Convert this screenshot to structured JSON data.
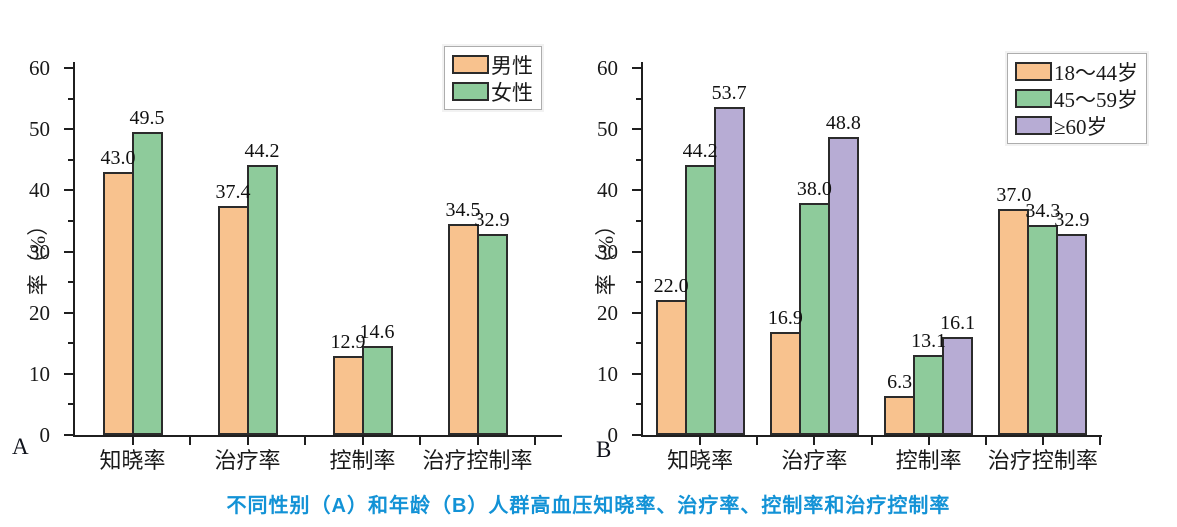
{
  "caption": {
    "text": "不同性别（A）和年龄（B）人群高血压知晓率、治疗率、控制率和治疗控制率",
    "color": "#1292D6"
  },
  "chart_data": [
    {
      "type": "bar",
      "panel_label": "A",
      "title": "",
      "xlabel": "",
      "ylabel": "率（%）",
      "ylim": [
        0,
        60
      ],
      "ytick_step": 10,
      "yminor_step": 5,
      "grid": false,
      "legend_position": "top-right",
      "bar_border_color": "#2b2b2b",
      "categories": [
        "知晓率",
        "治疗率",
        "控制率",
        "治疗控制率"
      ],
      "series": [
        {
          "name": "男性",
          "color": "#F8C28E",
          "values": [
            43.0,
            37.4,
            12.9,
            34.5
          ]
        },
        {
          "name": "女性",
          "color": "#8ECB9B",
          "values": [
            49.5,
            44.2,
            14.6,
            32.9
          ]
        }
      ]
    },
    {
      "type": "bar",
      "panel_label": "B",
      "title": "",
      "xlabel": "",
      "ylabel": "率（%）",
      "ylim": [
        0,
        60
      ],
      "ytick_step": 10,
      "yminor_step": 5,
      "grid": false,
      "legend_position": "top-right",
      "bar_border_color": "#2b2b2b",
      "categories": [
        "知晓率",
        "治疗率",
        "控制率",
        "治疗控制率"
      ],
      "series": [
        {
          "name": "18～44岁",
          "color": "#F8C28E",
          "values": [
            22.0,
            16.9,
            6.3,
            37.0
          ]
        },
        {
          "name": "45～59岁",
          "color": "#8ECB9B",
          "values": [
            44.2,
            38.0,
            13.1,
            34.3
          ]
        },
        {
          "name": "≥60岁",
          "color": "#B7ACD4",
          "values": [
            53.7,
            48.8,
            16.1,
            32.9
          ]
        }
      ]
    }
  ]
}
